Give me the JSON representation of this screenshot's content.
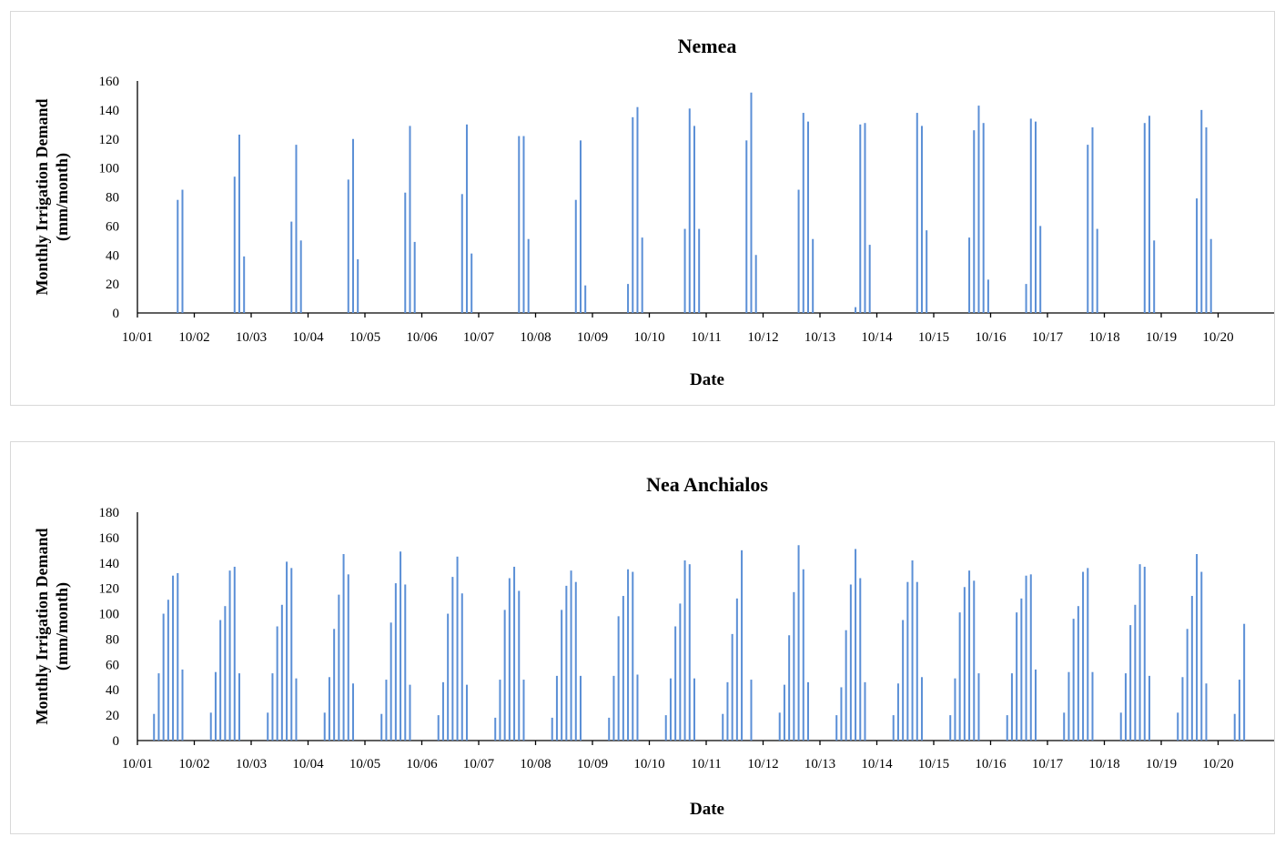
{
  "chart_data": [
    {
      "type": "bar",
      "title": "Nemea",
      "xlabel": "Date",
      "ylabel_line1": "Monthly Irrigation Demand",
      "ylabel_line2": "(mm/month)",
      "ylim": [
        0,
        160
      ],
      "yticks": [
        0,
        20,
        40,
        60,
        80,
        100,
        120,
        140,
        160
      ],
      "xticks": [
        "10/01",
        "10/02",
        "10/03",
        "10/04",
        "10/05",
        "10/06",
        "10/07",
        "10/08",
        "10/09",
        "10/10",
        "10/11",
        "10/12",
        "10/13",
        "10/14",
        "10/15",
        "10/16",
        "10/17",
        "10/18",
        "10/19",
        "10/20"
      ],
      "grid": false,
      "color": "#5b8fd6",
      "values": [
        [
          0,
          0,
          0,
          0,
          0,
          0,
          0,
          0,
          78,
          85,
          0,
          0
        ],
        [
          0,
          0,
          0,
          0,
          0,
          0,
          0,
          0,
          94,
          123,
          39,
          0
        ],
        [
          0,
          0,
          0,
          0,
          0,
          0,
          0,
          0,
          63,
          116,
          50,
          0
        ],
        [
          0,
          0,
          0,
          0,
          0,
          0,
          0,
          0,
          92,
          120,
          37,
          0
        ],
        [
          0,
          0,
          0,
          0,
          0,
          0,
          0,
          0,
          83,
          129,
          49,
          0
        ],
        [
          0,
          0,
          0,
          0,
          0,
          0,
          0,
          0,
          82,
          130,
          41,
          0
        ],
        [
          0,
          0,
          0,
          0,
          0,
          0,
          0,
          0,
          122,
          122,
          51,
          0
        ],
        [
          0,
          0,
          0,
          0,
          0,
          0,
          0,
          0,
          78,
          119,
          19,
          0
        ],
        [
          0,
          0,
          0,
          0,
          0,
          0,
          0,
          20,
          135,
          142,
          52,
          0
        ],
        [
          0,
          0,
          0,
          0,
          0,
          0,
          0,
          58,
          141,
          129,
          58,
          0
        ],
        [
          0,
          0,
          0,
          0,
          0,
          0,
          0,
          0,
          119,
          152,
          40,
          0
        ],
        [
          0,
          0,
          0,
          0,
          0,
          0,
          0,
          85,
          138,
          132,
          51,
          0
        ],
        [
          0,
          0,
          0,
          0,
          0,
          0,
          0,
          4,
          130,
          131,
          47,
          0
        ],
        [
          0,
          0,
          0,
          0,
          0,
          0,
          0,
          0,
          138,
          129,
          57,
          0
        ],
        [
          0,
          0,
          0,
          0,
          0,
          0,
          0,
          52,
          126,
          143,
          131,
          23
        ],
        [
          0,
          0,
          0,
          0,
          0,
          0,
          0,
          20,
          134,
          132,
          60,
          0
        ],
        [
          0,
          0,
          0,
          0,
          0,
          0,
          0,
          0,
          116,
          128,
          58,
          0
        ],
        [
          0,
          0,
          0,
          0,
          0,
          0,
          0,
          0,
          131,
          136,
          50,
          0
        ],
        [
          0,
          0,
          0,
          0,
          0,
          0,
          0,
          79,
          140,
          128,
          51,
          0
        ]
      ]
    },
    {
      "type": "bar",
      "title": "Nea Anchialos",
      "xlabel": "Date",
      "ylabel_line1": "Monthly Irrigation Demand",
      "ylabel_line2": "(mm/month)",
      "ylim": [
        0,
        180
      ],
      "yticks": [
        0,
        20,
        40,
        60,
        80,
        100,
        120,
        140,
        160,
        180
      ],
      "xticks": [
        "10/01",
        "10/02",
        "10/03",
        "10/04",
        "10/05",
        "10/06",
        "10/07",
        "10/08",
        "10/09",
        "10/10",
        "10/11",
        "10/12",
        "10/13",
        "10/14",
        "10/15",
        "10/16",
        "10/17",
        "10/18",
        "10/19",
        "10/20"
      ],
      "grid": false,
      "color": "#5b8fd6",
      "values": [
        [
          0,
          0,
          0,
          21,
          53,
          100,
          111,
          130,
          132,
          56,
          0,
          0
        ],
        [
          0,
          0,
          0,
          22,
          54,
          95,
          106,
          134,
          137,
          53,
          0,
          0
        ],
        [
          0,
          0,
          0,
          22,
          53,
          90,
          107,
          141,
          136,
          49,
          0,
          0
        ],
        [
          0,
          0,
          0,
          22,
          50,
          88,
          115,
          147,
          131,
          45,
          0,
          0
        ],
        [
          0,
          0,
          0,
          21,
          48,
          93,
          124,
          149,
          123,
          44,
          0,
          0
        ],
        [
          0,
          0,
          0,
          20,
          46,
          100,
          129,
          145,
          116,
          44,
          0,
          0
        ],
        [
          0,
          0,
          0,
          18,
          48,
          103,
          128,
          137,
          118,
          48,
          0,
          0
        ],
        [
          0,
          0,
          0,
          18,
          51,
          103,
          122,
          134,
          125,
          51,
          0,
          0
        ],
        [
          0,
          0,
          0,
          18,
          51,
          98,
          114,
          135,
          133,
          52,
          0,
          0
        ],
        [
          0,
          0,
          0,
          20,
          49,
          90,
          108,
          142,
          139,
          49,
          0,
          0
        ],
        [
          0,
          0,
          0,
          21,
          46,
          84,
          112,
          150,
          0,
          48,
          0,
          0
        ],
        [
          0,
          0,
          0,
          22,
          44,
          83,
          117,
          154,
          135,
          46,
          0,
          0
        ],
        [
          0,
          0,
          0,
          20,
          42,
          87,
          123,
          151,
          128,
          46,
          0,
          0
        ],
        [
          0,
          0,
          0,
          20,
          45,
          95,
          125,
          142,
          125,
          50,
          0,
          0
        ],
        [
          0,
          0,
          0,
          20,
          49,
          101,
          121,
          134,
          126,
          53,
          0,
          0
        ],
        [
          0,
          0,
          0,
          20,
          53,
          101,
          112,
          130,
          131,
          56,
          0,
          0
        ],
        [
          0,
          0,
          0,
          22,
          54,
          96,
          106,
          133,
          136,
          54,
          0,
          0
        ],
        [
          0,
          0,
          0,
          22,
          53,
          91,
          107,
          139,
          137,
          51,
          0,
          0
        ],
        [
          0,
          0,
          0,
          22,
          50,
          88,
          114,
          147,
          133,
          45,
          0,
          0
        ],
        [
          0,
          0,
          0,
          21,
          48,
          92
        ]
      ]
    }
  ]
}
